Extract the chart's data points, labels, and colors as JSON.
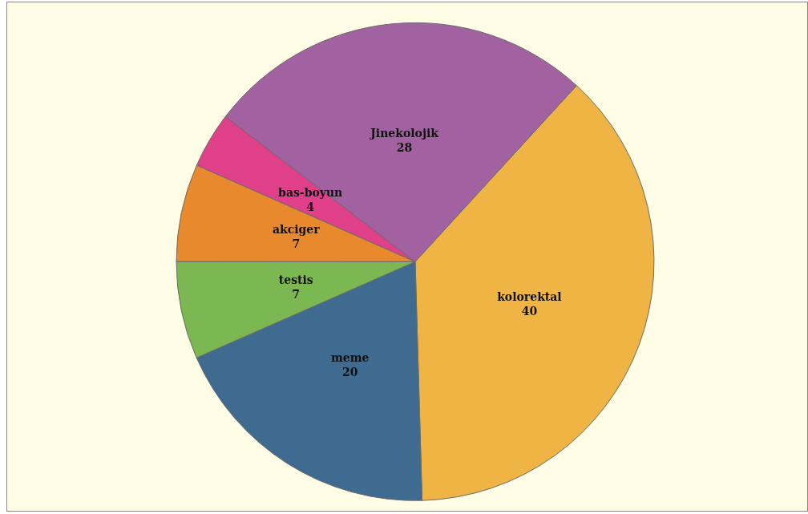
{
  "chart_data": {
    "type": "pie",
    "categories": [
      "kolorektal",
      "meme",
      "testis",
      "akciger",
      "bas-boyun",
      "Jinekolojik"
    ],
    "values": [
      40,
      20,
      7,
      7,
      4,
      28
    ],
    "colors": [
      "#f0b445",
      "#3e6b8f",
      "#7bb851",
      "#e8892e",
      "#e0408a",
      "#a262a2"
    ],
    "data_labels": true,
    "legend": false
  }
}
